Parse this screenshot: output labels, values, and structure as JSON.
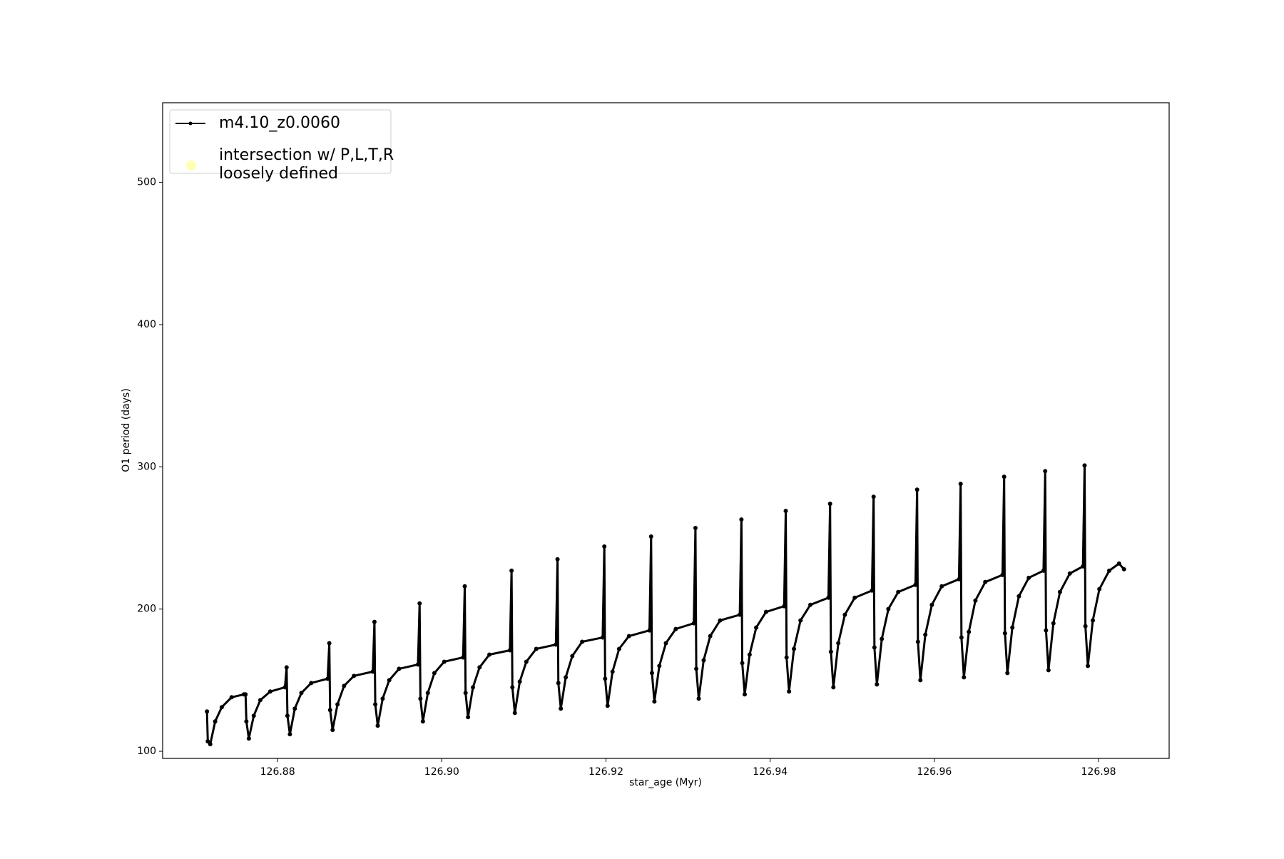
{
  "chart_data": {
    "type": "line",
    "xlabel": "star_age (Myr)",
    "ylabel": "O1 period (days)",
    "xlim": [
      126.866,
      126.9886
    ],
    "ylim": [
      95,
      556
    ],
    "xticks": [
      126.88,
      {
        "value": 126.9,
        "label": "126.90"
      },
      126.92,
      126.94,
      126.96,
      126.98
    ],
    "yticks": [
      100,
      200,
      300,
      400,
      500
    ],
    "legend": "upper left",
    "series": [
      {
        "name": "m4.10_z0.0060",
        "color": "#000000",
        "x": [
          126.8714,
          126.8715,
          126.8718,
          126.8724,
          126.8732,
          126.8744,
          126.8759,
          126.8761,
          126.8762,
          126.8765,
          126.8771,
          126.8779,
          126.8791,
          126.8809,
          126.8811,
          126.8812,
          126.8815,
          126.8821,
          126.8829,
          126.8841,
          126.8861,
          126.8863,
          126.8864,
          126.8867,
          126.8873,
          126.8881,
          126.8893,
          126.8916,
          126.8918,
          126.8919,
          126.8922,
          126.8928,
          126.8936,
          126.8948,
          126.8971,
          126.8973,
          126.8974,
          126.8977,
          126.8983,
          126.8991,
          126.9003,
          126.9026,
          126.9028,
          126.9029,
          126.9032,
          126.9038,
          126.9046,
          126.9058,
          126.9083,
          126.9085,
          126.9086,
          126.9089,
          126.9095,
          126.9103,
          126.9115,
          126.9139,
          126.9141,
          126.9142,
          126.9145,
          126.9151,
          126.9159,
          126.9171,
          126.9196,
          126.9198,
          126.9199,
          126.9202,
          126.9208,
          126.9216,
          126.9228,
          126.9253,
          126.9255,
          126.9256,
          126.9259,
          126.9265,
          126.9273,
          126.9285,
          126.9307,
          126.9309,
          126.931,
          126.9313,
          126.9319,
          126.9327,
          126.9339,
          126.9363,
          126.9365,
          126.9366,
          126.9369,
          126.9375,
          126.9383,
          126.9395,
          126.9417,
          126.9419,
          126.942,
          126.9423,
          126.9429,
          126.9437,
          126.9449,
          126.9471,
          126.9473,
          126.9474,
          126.9477,
          126.9483,
          126.9491,
          126.9503,
          126.9524,
          126.9526,
          126.9527,
          126.953,
          126.9536,
          126.9544,
          126.9556,
          126.9577,
          126.9579,
          126.958,
          126.9583,
          126.9589,
          126.9597,
          126.9609,
          126.963,
          126.9632,
          126.9633,
          126.9636,
          126.9642,
          126.965,
          126.9662,
          126.9683,
          126.9685,
          126.9686,
          126.9689,
          126.9695,
          126.9703,
          126.9715,
          126.9733,
          126.9735,
          126.9736,
          126.9739,
          126.9745,
          126.9753,
          126.9765,
          126.9781,
          126.9783,
          126.9784,
          126.9787,
          126.9793,
          126.9801,
          126.9813,
          126.9825,
          126.9831
        ],
        "values": [
          128,
          107,
          105,
          121,
          131,
          138,
          140,
          140,
          121,
          109,
          125,
          136,
          142,
          145,
          159,
          125,
          112,
          130,
          141,
          148,
          151,
          176,
          129,
          115,
          133,
          146,
          153,
          156,
          191,
          133,
          118,
          137,
          150,
          158,
          161,
          204,
          137,
          121,
          141,
          155,
          163,
          166,
          216,
          141,
          124,
          145,
          159,
          168,
          171,
          227,
          145,
          127,
          149,
          163,
          172,
          175,
          235,
          148,
          130,
          152,
          167,
          177,
          180,
          244,
          151,
          132,
          156,
          172,
          181,
          185,
          251,
          155,
          135,
          160,
          176,
          186,
          190,
          257,
          158,
          137,
          164,
          181,
          192,
          196,
          263,
          162,
          140,
          168,
          187,
          198,
          202,
          269,
          166,
          142,
          172,
          192,
          203,
          208,
          274,
          170,
          145,
          176,
          196,
          208,
          213,
          279,
          173,
          147,
          179,
          200,
          212,
          217,
          284,
          177,
          150,
          182,
          203,
          216,
          221,
          288,
          180,
          152,
          184,
          206,
          219,
          224,
          293,
          183,
          155,
          187,
          209,
          222,
          227,
          297,
          185,
          157,
          190,
          212,
          225,
          230,
          301,
          188,
          160,
          192,
          214,
          227,
          232,
          228
        ]
      },
      {
        "name": "intersection w/ P,L,T,R\nloosely defined",
        "color": "#ffffb3",
        "type": "scatter",
        "x": [],
        "values": []
      }
    ]
  }
}
